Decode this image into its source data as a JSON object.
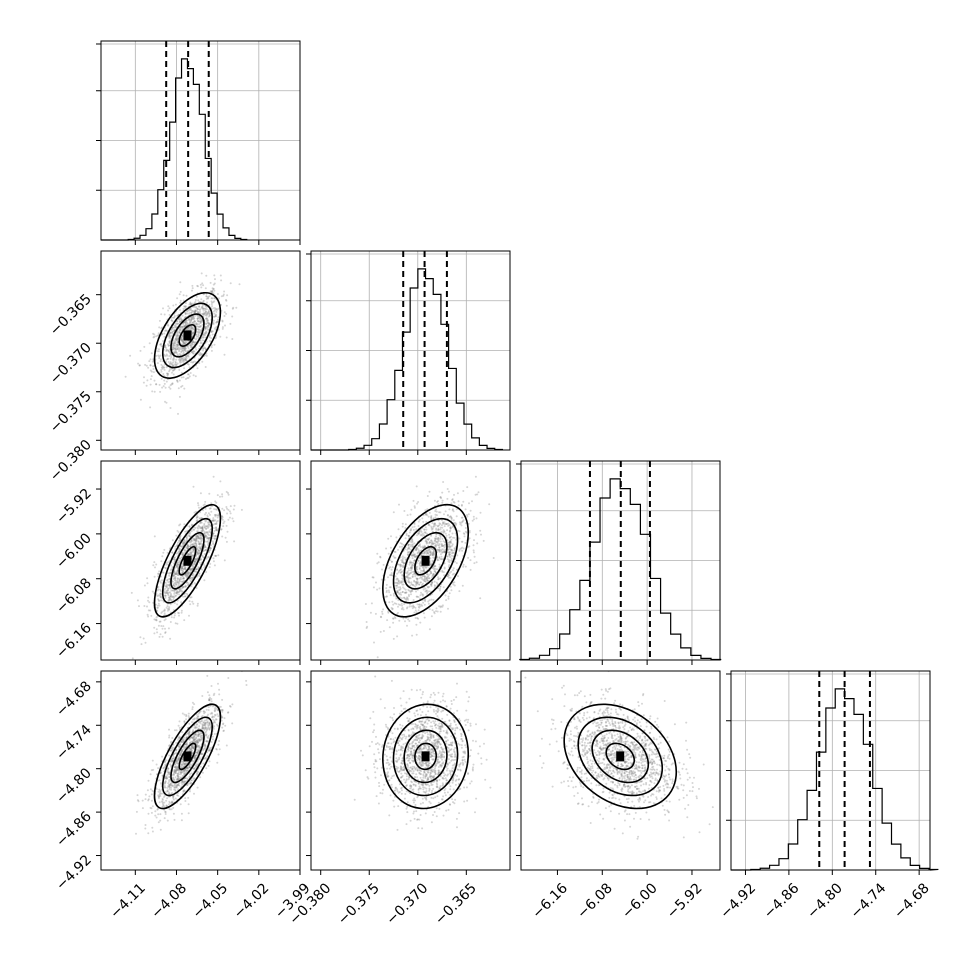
{
  "chart_data": {
    "type": "corner",
    "parameters": [
      {
        "ticks": [
          -4.11,
          -4.08,
          -4.05,
          -4.02,
          -3.99
        ],
        "tick_labels": [
          "−4.11",
          "−4.08",
          "−4.05",
          "−4.02",
          "−3.99"
        ],
        "range": [
          -4.135,
          -3.99
        ],
        "mean": -4.072,
        "std": 0.012,
        "quantiles": [
          -4.0875,
          -4.0715,
          -4.0565
        ]
      },
      {
        "ticks": [
          -0.38,
          -0.375,
          -0.37,
          -0.365
        ],
        "tick_labels": [
          "−0.380",
          "−0.375",
          "−0.370",
          "−0.365"
        ],
        "range": [
          -0.381,
          -0.3605
        ],
        "mean": -0.3692,
        "std": 0.0022,
        "quantiles": [
          -0.3715,
          -0.3693,
          -0.367
        ]
      },
      {
        "ticks": [
          -6.16,
          -6.08,
          -6.0,
          -5.92
        ],
        "tick_labels": [
          "−6.16",
          "−6.08",
          "−6.00",
          "−5.92"
        ],
        "range": [
          -6.225,
          -5.87
        ],
        "mean": -6.048,
        "std": 0.05,
        "quantiles": [
          -6.102,
          -6.047,
          -5.995
        ]
      },
      {
        "ticks": [
          -4.92,
          -4.86,
          -4.8,
          -4.74,
          -4.68
        ],
        "tick_labels": [
          "−4.92",
          "−4.86",
          "−4.80",
          "−4.74",
          "−4.68"
        ],
        "range": [
          -4.94,
          -4.665
        ],
        "mean": -4.783,
        "std": 0.036,
        "quantiles": [
          -4.818,
          -4.783,
          -4.748
        ]
      }
    ],
    "correlations": [
      {
        "row": 1,
        "col": 0,
        "r": 0.55
      },
      {
        "row": 2,
        "col": 0,
        "r": 0.75
      },
      {
        "row": 2,
        "col": 1,
        "r": 0.5
      },
      {
        "row": 3,
        "col": 0,
        "r": 0.75
      },
      {
        "row": 3,
        "col": 1,
        "r": 0.05
      },
      {
        "row": 3,
        "col": 2,
        "r": -0.3
      }
    ],
    "histogram_bins": 20,
    "contour_levels_sigma": [
      0.5,
      1.0,
      1.5,
      2.0
    ],
    "grid": true
  }
}
